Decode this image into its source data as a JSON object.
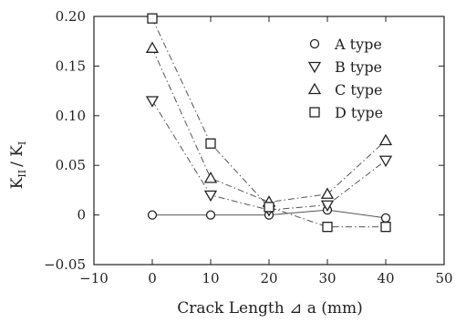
{
  "chart_data": {
    "type": "line",
    "title": "",
    "xlabel": "Crack Length ⊿ a (mm)",
    "ylabel": "K₁₁ / K₁",
    "ylabel_main": "K",
    "ylabel_sub": "II",
    "ylabel_div": "/ K",
    "ylabel_sub2": "I",
    "xlim": [
      -10,
      50
    ],
    "ylim": [
      -0.05,
      0.2
    ],
    "xticks": [
      -10,
      0,
      10,
      20,
      30,
      40,
      50
    ],
    "xtick_labels": [
      "−10",
      "0",
      "10",
      "20",
      "30",
      "40",
      "50"
    ],
    "yticks": [
      -0.05,
      0,
      0.05,
      0.1,
      0.15,
      0.2
    ],
    "ytick_labels": [
      "−0.05",
      "0",
      "0.05",
      "0.10",
      "0.15",
      "0.20"
    ],
    "grid": false,
    "legend_position": "top-right",
    "x": [
      0,
      10,
      20,
      30,
      40
    ],
    "series": [
      {
        "name": "A type",
        "marker": "circle",
        "line": "solid",
        "values": [
          0.0,
          0.0,
          0.0,
          0.005,
          -0.003
        ]
      },
      {
        "name": "B type",
        "marker": "triangle-down",
        "line": "dashdot",
        "values": [
          0.115,
          0.02,
          0.005,
          0.01,
          0.055
        ]
      },
      {
        "name": "C type",
        "marker": "triangle-up",
        "line": "dashdot",
        "values": [
          0.168,
          0.037,
          0.013,
          0.021,
          0.075
        ]
      },
      {
        "name": "D type",
        "marker": "square",
        "line": "dashdot",
        "values": [
          0.198,
          0.072,
          0.008,
          -0.012,
          -0.012
        ]
      }
    ],
    "colors": {
      "ink": "#222222",
      "line": "#555555"
    }
  }
}
